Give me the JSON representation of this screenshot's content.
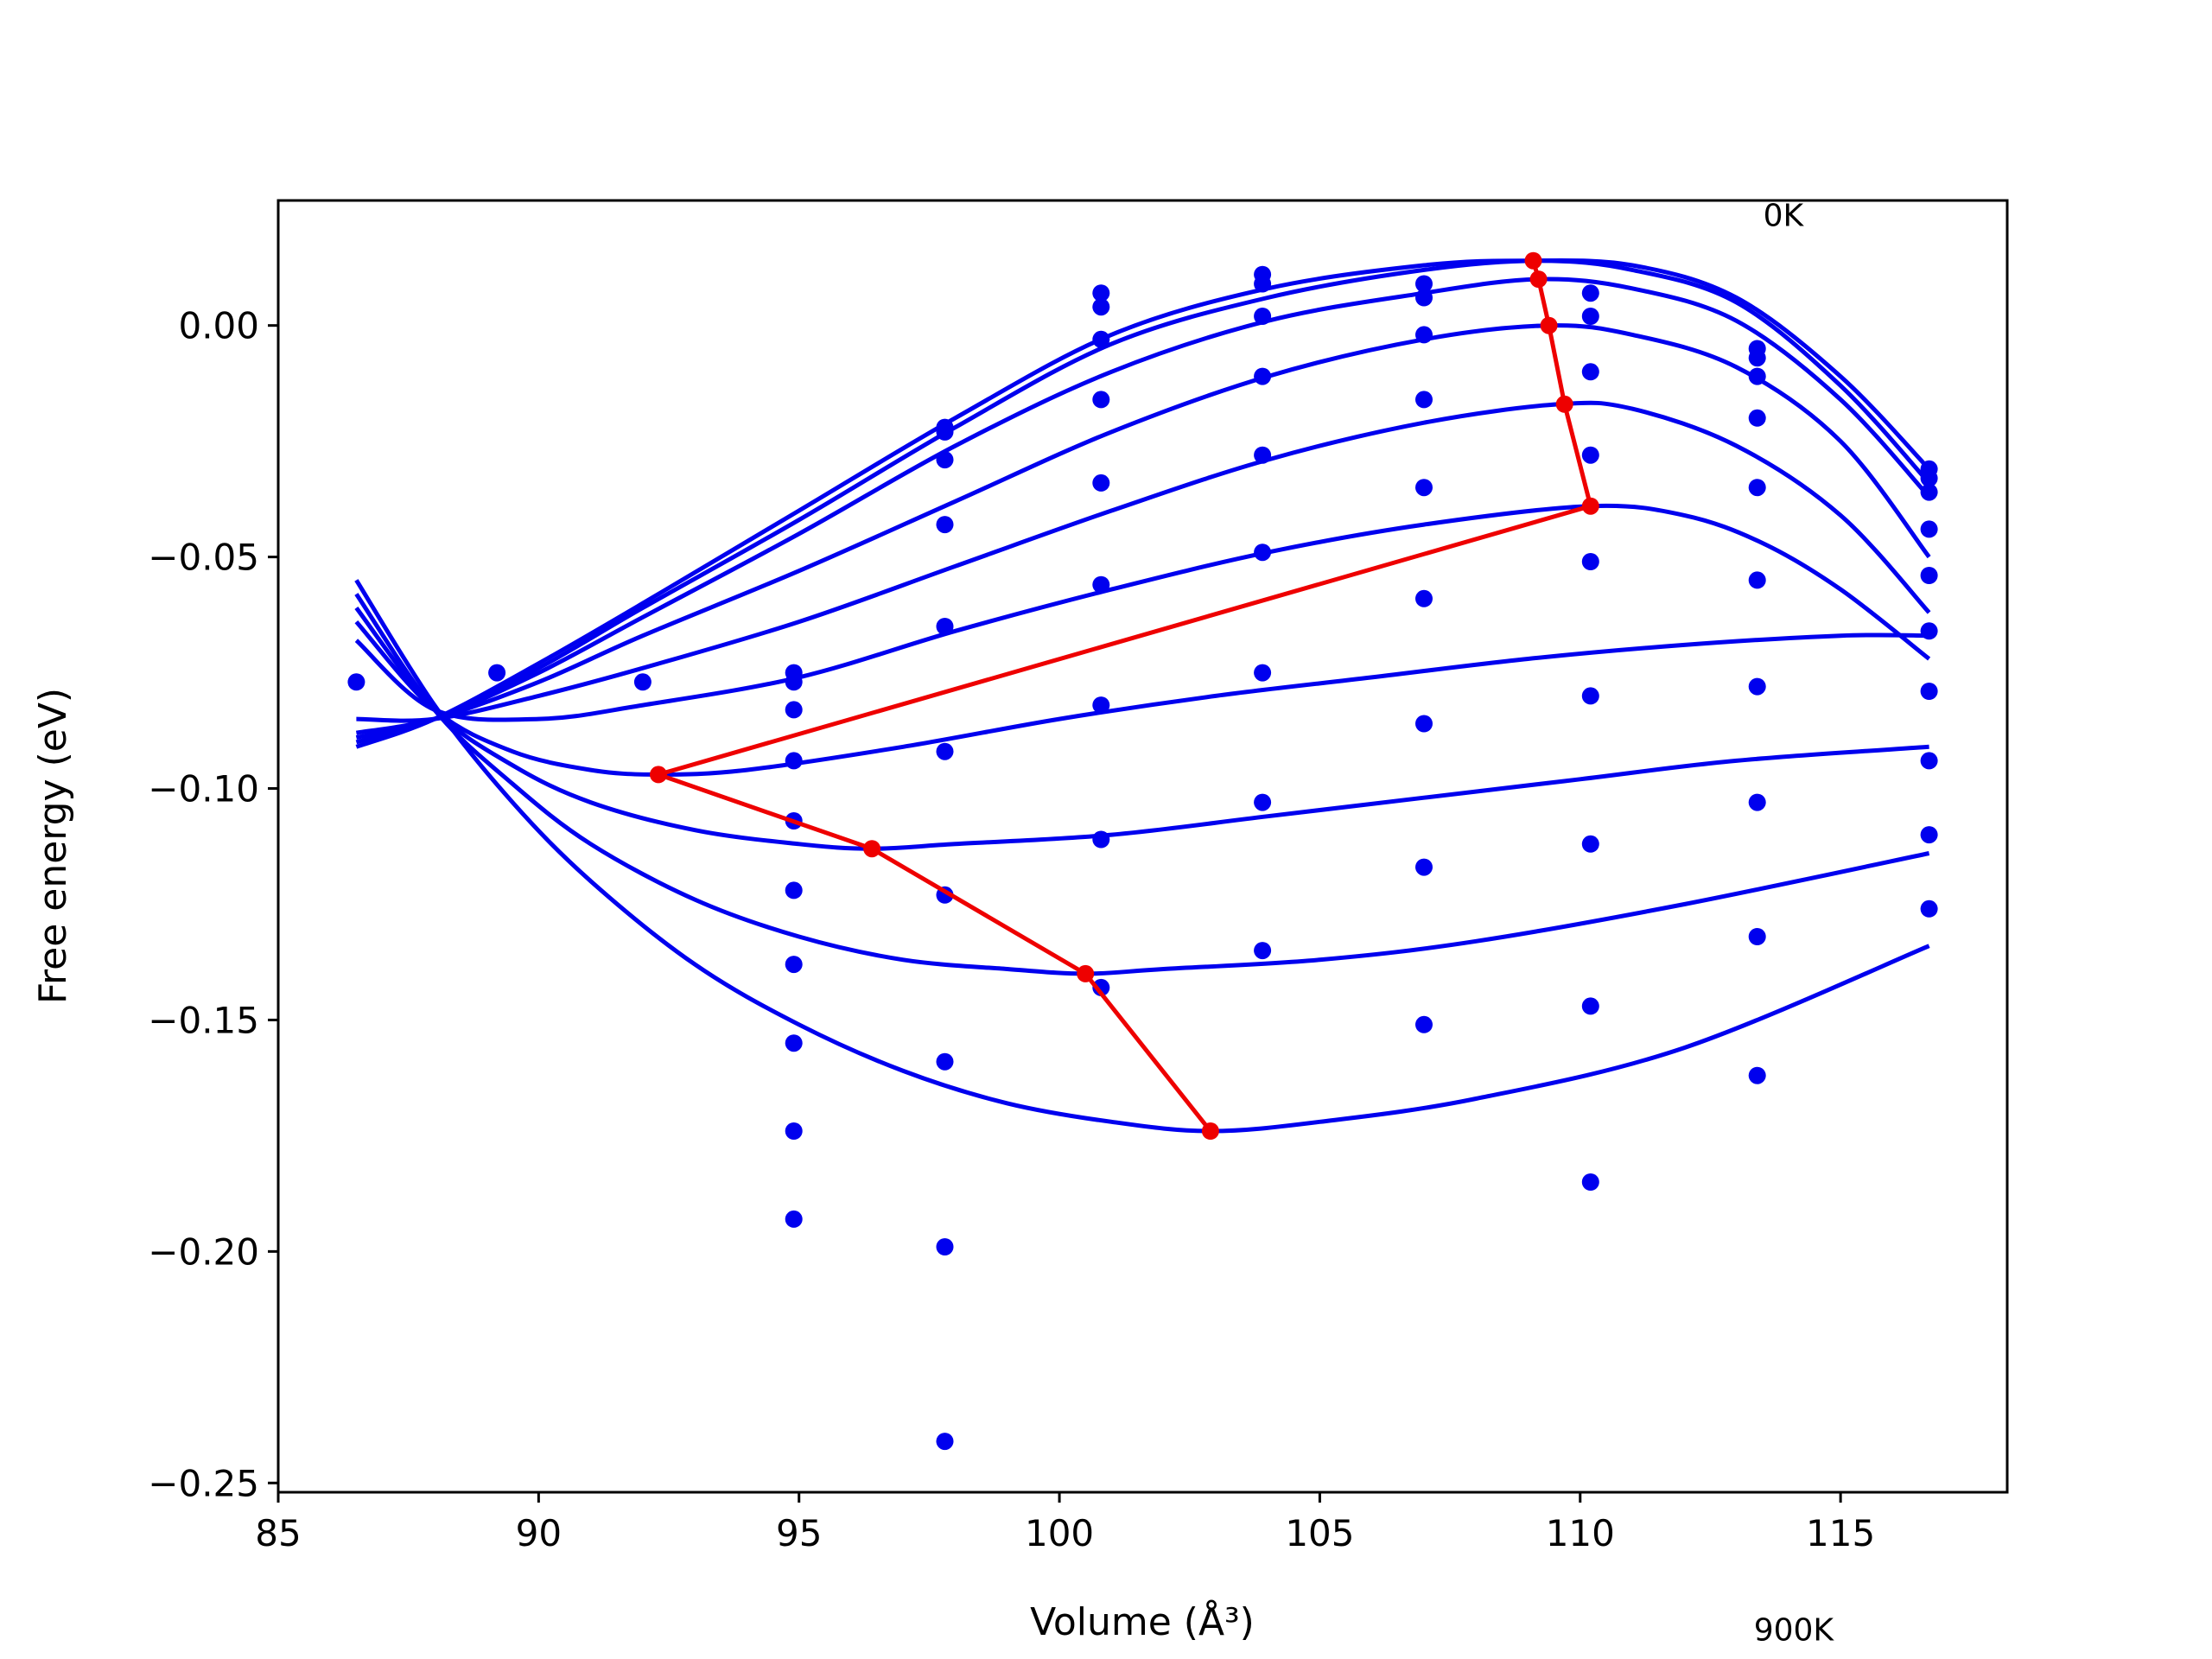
{
  "chart_data": {
    "type": "scatter",
    "title": "",
    "xlabel": "Volume (Å³)",
    "ylabel": "Free energy (eV)",
    "xlim": [
      85,
      118.2
    ],
    "ylim": [
      -0.252,
      0.027
    ],
    "grid": false,
    "legend": "none",
    "annotations": [
      {
        "text": "0K",
        "x": 113.9,
        "y": 0.0215
      },
      {
        "text": "900K",
        "x": 114.1,
        "y": -0.284
      }
    ],
    "xticks": [
      85,
      90,
      95,
      100,
      105,
      110,
      115
    ],
    "yticks": [
      0.0,
      -0.05,
      -0.1,
      -0.15,
      -0.2,
      -0.25
    ],
    "ytick_labels": [
      "0.00",
      "−0.05",
      "−0.10",
      "−0.15",
      "−0.20",
      "−0.25"
    ],
    "colors": {
      "fits": "#0000ee",
      "points": "#0000ee",
      "minima": "#ee0000",
      "axes": "#000000"
    },
    "point_xs": [
      86.5,
      89.2,
      92.0,
      94.9,
      97.8,
      100.8,
      103.9,
      107.0,
      110.2,
      113.4,
      116.7
    ],
    "points": [
      {
        "x": 86.5,
        "y": -0.077
      },
      {
        "x": 89.2,
        "y": -0.075
      },
      {
        "x": 92.0,
        "y": -0.077
      },
      {
        "x": 94.9,
        "y": -0.075
      },
      {
        "x": 94.9,
        "y": -0.077
      },
      {
        "x": 94.9,
        "y": -0.083
      },
      {
        "x": 94.9,
        "y": -0.094
      },
      {
        "x": 94.9,
        "y": -0.107
      },
      {
        "x": 94.9,
        "y": -0.122
      },
      {
        "x": 94.9,
        "y": -0.138
      },
      {
        "x": 94.9,
        "y": -0.155
      },
      {
        "x": 94.9,
        "y": -0.174
      },
      {
        "x": 94.9,
        "y": -0.193
      },
      {
        "x": 97.8,
        "y": -0.022
      },
      {
        "x": 97.8,
        "y": -0.023
      },
      {
        "x": 97.8,
        "y": -0.029
      },
      {
        "x": 97.8,
        "y": -0.043
      },
      {
        "x": 97.8,
        "y": -0.065
      },
      {
        "x": 97.8,
        "y": -0.092
      },
      {
        "x": 97.8,
        "y": -0.123
      },
      {
        "x": 97.8,
        "y": -0.159
      },
      {
        "x": 97.8,
        "y": -0.199
      },
      {
        "x": 97.8,
        "y": -0.241
      },
      {
        "x": 100.8,
        "y": 0.007
      },
      {
        "x": 100.8,
        "y": 0.004
      },
      {
        "x": 100.8,
        "y": -0.003
      },
      {
        "x": 100.8,
        "y": -0.016
      },
      {
        "x": 100.8,
        "y": -0.034
      },
      {
        "x": 100.8,
        "y": -0.056
      },
      {
        "x": 100.8,
        "y": -0.082
      },
      {
        "x": 100.8,
        "y": -0.111
      },
      {
        "x": 100.8,
        "y": -0.143
      },
      {
        "x": 103.9,
        "y": 0.011
      },
      {
        "x": 103.9,
        "y": 0.009
      },
      {
        "x": 103.9,
        "y": 0.002
      },
      {
        "x": 103.9,
        "y": -0.011
      },
      {
        "x": 103.9,
        "y": -0.028
      },
      {
        "x": 103.9,
        "y": -0.049
      },
      {
        "x": 103.9,
        "y": -0.075
      },
      {
        "x": 103.9,
        "y": -0.103
      },
      {
        "x": 103.9,
        "y": -0.135
      },
      {
        "x": 107.0,
        "y": 0.009
      },
      {
        "x": 107.0,
        "y": 0.006
      },
      {
        "x": 107.0,
        "y": -0.002
      },
      {
        "x": 107.0,
        "y": -0.016
      },
      {
        "x": 107.0,
        "y": -0.035
      },
      {
        "x": 107.0,
        "y": -0.059
      },
      {
        "x": 107.0,
        "y": -0.086
      },
      {
        "x": 107.0,
        "y": -0.117
      },
      {
        "x": 107.0,
        "y": -0.151
      },
      {
        "x": 110.2,
        "y": 0.007
      },
      {
        "x": 110.2,
        "y": 0.002
      },
      {
        "x": 110.2,
        "y": -0.01
      },
      {
        "x": 110.2,
        "y": -0.028
      },
      {
        "x": 110.2,
        "y": -0.051
      },
      {
        "x": 110.2,
        "y": -0.08
      },
      {
        "x": 110.2,
        "y": -0.112
      },
      {
        "x": 110.2,
        "y": -0.147
      },
      {
        "x": 110.2,
        "y": -0.185
      },
      {
        "x": 113.4,
        "y": -0.005
      },
      {
        "x": 113.4,
        "y": -0.007
      },
      {
        "x": 113.4,
        "y": -0.011
      },
      {
        "x": 113.4,
        "y": -0.02
      },
      {
        "x": 113.4,
        "y": -0.035
      },
      {
        "x": 113.4,
        "y": -0.055
      },
      {
        "x": 113.4,
        "y": -0.078
      },
      {
        "x": 113.4,
        "y": -0.103
      },
      {
        "x": 113.4,
        "y": -0.132
      },
      {
        "x": 113.4,
        "y": -0.162
      },
      {
        "x": 116.7,
        "y": -0.031
      },
      {
        "x": 116.7,
        "y": -0.033
      },
      {
        "x": 116.7,
        "y": -0.036
      },
      {
        "x": 116.7,
        "y": -0.044
      },
      {
        "x": 116.7,
        "y": -0.054
      },
      {
        "x": 116.7,
        "y": -0.066
      },
      {
        "x": 116.7,
        "y": -0.079
      },
      {
        "x": 116.7,
        "y": -0.094
      },
      {
        "x": 116.7,
        "y": -0.11
      },
      {
        "x": 116.7,
        "y": -0.126
      }
    ],
    "fit_curves": [
      {
        "x": [
          86.5,
          88.0,
          90.0,
          92.0,
          95.0,
          98.0,
          101.0,
          104.0,
          107.0,
          109.0,
          111.0,
          113.0,
          115.0,
          116.7
        ],
        "y": [
          -0.091,
          -0.085,
          -0.073,
          -0.06,
          -0.04,
          -0.02,
          -0.002,
          0.008,
          0.013,
          0.014,
          0.013,
          0.006,
          -0.011,
          -0.031
        ]
      },
      {
        "x": [
          86.5,
          88.0,
          90.0,
          92.0,
          95.0,
          98.0,
          101.0,
          104.0,
          107.0,
          109.2,
          111.0,
          113.0,
          115.0,
          116.7
        ],
        "y": [
          -0.09,
          -0.085,
          -0.074,
          -0.061,
          -0.042,
          -0.022,
          -0.004,
          0.006,
          0.012,
          0.014,
          0.012,
          0.005,
          -0.013,
          -0.034
        ]
      },
      {
        "x": [
          86.5,
          88.0,
          90.0,
          92.0,
          95.0,
          98.0,
          101.0,
          104.0,
          107.0,
          109.2,
          111.0,
          113.0,
          115.0,
          116.7
        ],
        "y": [
          -0.089,
          -0.085,
          -0.075,
          -0.063,
          -0.045,
          -0.026,
          -0.01,
          0.001,
          0.007,
          0.01,
          0.008,
          0.001,
          -0.016,
          -0.037
        ]
      },
      {
        "x": [
          86.5,
          88.0,
          90.0,
          92.0,
          95.0,
          98.0,
          101.0,
          104.0,
          107.0,
          109.4,
          111.0,
          113.0,
          115.0,
          116.7
        ],
        "y": [
          -0.088,
          -0.085,
          -0.077,
          -0.067,
          -0.053,
          -0.038,
          -0.023,
          -0.011,
          -0.003,
          0.0,
          -0.002,
          -0.009,
          -0.025,
          -0.05
        ]
      },
      {
        "x": [
          86.5,
          88.0,
          90.0,
          92.0,
          95.0,
          98.0,
          101.0,
          104.0,
          107.0,
          109.6,
          111.0,
          113.0,
          115.0,
          116.7
        ],
        "y": [
          -0.085,
          -0.085,
          -0.08,
          -0.074,
          -0.064,
          -0.052,
          -0.04,
          -0.029,
          -0.021,
          -0.017,
          -0.018,
          -0.026,
          -0.041,
          -0.062
        ]
      },
      {
        "x": [
          86.5,
          88.0,
          90.0,
          92.0,
          95.0,
          98.0,
          101.0,
          104.0,
          107.0,
          110.2,
          112.0,
          113.5,
          115.0,
          116.7
        ],
        "y": [
          -0.068,
          -0.083,
          -0.085,
          -0.082,
          -0.076,
          -0.066,
          -0.057,
          -0.049,
          -0.043,
          -0.039,
          -0.041,
          -0.047,
          -0.057,
          -0.072
        ]
      },
      {
        "x": [
          86.5,
          88.0,
          89.5,
          91.0,
          92.3,
          94.0,
          97.0,
          100.0,
          103.0,
          106.0,
          109.0,
          112.0,
          115.0,
          116.7
        ],
        "y": [
          -0.064,
          -0.083,
          -0.092,
          -0.096,
          -0.097,
          -0.096,
          -0.091,
          -0.085,
          -0.08,
          -0.076,
          -0.072,
          -0.069,
          -0.067,
          -0.067
        ]
      },
      {
        "x": [
          86.5,
          88.0,
          89.5,
          91.0,
          93.0,
          95.0,
          96.4,
          98.0,
          101.0,
          104.0,
          107.0,
          110.0,
          113.0,
          116.7
        ],
        "y": [
          -0.061,
          -0.083,
          -0.095,
          -0.103,
          -0.109,
          -0.112,
          -0.113,
          -0.112,
          -0.11,
          -0.106,
          -0.102,
          -0.098,
          -0.094,
          -0.091
        ]
      },
      {
        "x": [
          86.5,
          88.0,
          89.5,
          91.0,
          93.0,
          95.0,
          97.0,
          99.0,
          100.5,
          102.0,
          105.0,
          108.0,
          112.0,
          116.7
        ],
        "y": [
          -0.058,
          -0.083,
          -0.099,
          -0.112,
          -0.124,
          -0.132,
          -0.137,
          -0.139,
          -0.14,
          -0.139,
          -0.137,
          -0.133,
          -0.125,
          -0.114
        ]
      },
      {
        "x": [
          86.5,
          88.0,
          89.5,
          91.0,
          93.0,
          95.0,
          97.0,
          99.0,
          101.0,
          102.9,
          105.0,
          108.0,
          112.0,
          116.7
        ],
        "y": [
          -0.055,
          -0.082,
          -0.103,
          -0.12,
          -0.138,
          -0.151,
          -0.161,
          -0.168,
          -0.172,
          -0.174,
          -0.172,
          -0.167,
          -0.156,
          -0.134
        ]
      }
    ],
    "minima_path": {
      "x": [
        109.1,
        109.2,
        109.4,
        109.7,
        110.2,
        92.3,
        96.4,
        100.5,
        102.9
      ],
      "y": [
        0.014,
        0.01,
        0.0,
        -0.017,
        -0.039,
        -0.097,
        -0.113,
        -0.14,
        -0.174
      ]
    }
  }
}
